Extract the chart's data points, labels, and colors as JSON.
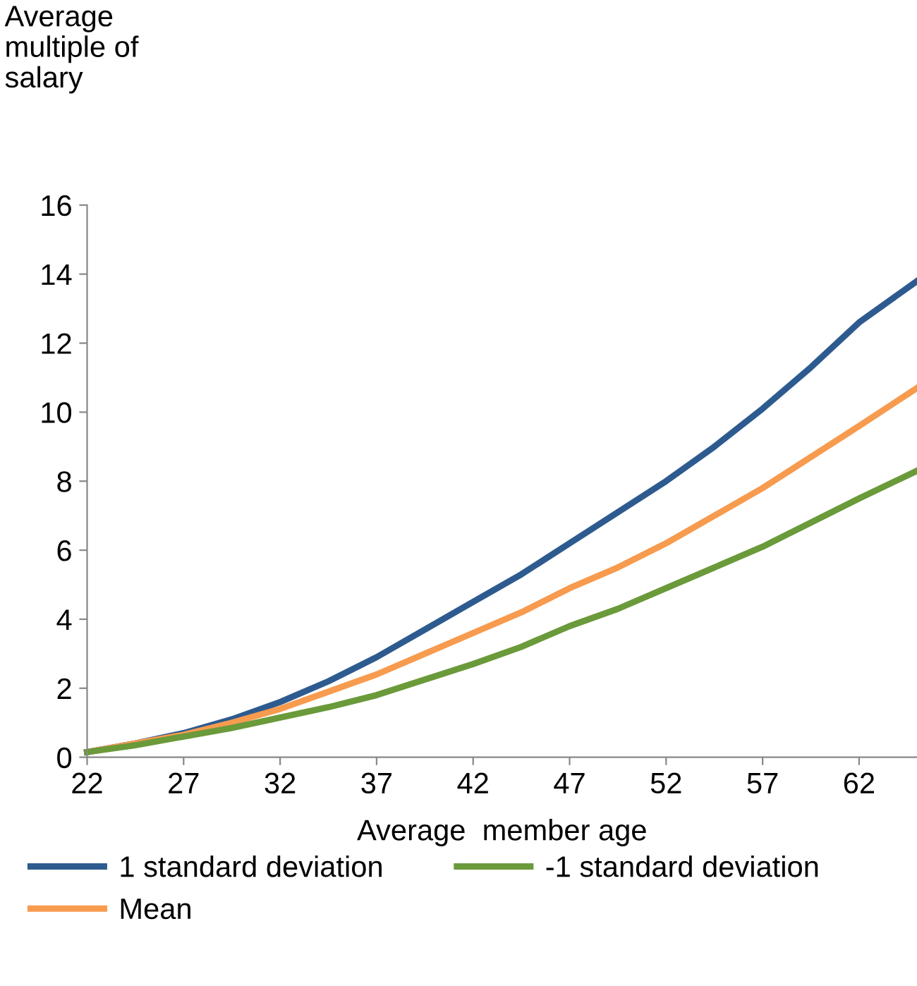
{
  "chart_data": {
    "type": "line",
    "ylabel": "Average\nmultiple of\nsalary",
    "xlabel": "Average  member age",
    "x": [
      22,
      24.5,
      27,
      29.5,
      32,
      34.5,
      37,
      39.5,
      42,
      44.5,
      47,
      49.5,
      52,
      54.5,
      57,
      59.5,
      62,
      65
    ],
    "series": [
      {
        "name": "1 standard deviation",
        "color": "#2e5b8f",
        "values": [
          0.15,
          0.4,
          0.7,
          1.1,
          1.6,
          2.2,
          2.9,
          3.7,
          4.5,
          5.3,
          6.2,
          7.1,
          8.0,
          9.0,
          10.1,
          11.3,
          12.6,
          13.8
        ]
      },
      {
        "name": "Mean",
        "color": "#f79b4f",
        "values": [
          0.15,
          0.4,
          0.65,
          1.0,
          1.4,
          1.9,
          2.4,
          3.0,
          3.6,
          4.2,
          4.9,
          5.5,
          6.2,
          7.0,
          7.8,
          8.7,
          9.6,
          10.7
        ]
      },
      {
        "name": "-1 standard deviation",
        "color": "#6a9a3a",
        "values": [
          0.15,
          0.35,
          0.6,
          0.85,
          1.15,
          1.45,
          1.8,
          2.25,
          2.7,
          3.2,
          3.8,
          4.3,
          4.9,
          5.5,
          6.1,
          6.8,
          7.5,
          8.3
        ]
      }
    ],
    "xlim": [
      22,
      65
    ],
    "xticks": [
      22,
      27,
      32,
      37,
      42,
      47,
      52,
      57,
      62
    ],
    "ylim": [
      0,
      16
    ],
    "yticks": [
      0,
      2,
      4,
      6,
      8,
      10,
      12,
      14,
      16
    ],
    "grid": false,
    "legend": "bottom",
    "marker": "none",
    "line_style": "solid"
  }
}
